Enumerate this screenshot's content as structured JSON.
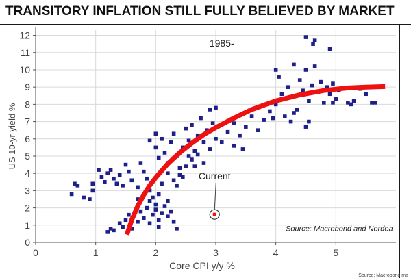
{
  "page": {
    "title": "TRANSITORY INFLATION STILL FULLY BELIEVED BY MARKET",
    "corner_note": "Source: Macrobond ma"
  },
  "colors": {
    "points": "#1f1f8a",
    "curve": "#ee1111",
    "current": "#ee1111",
    "grid": "#d9d9d9",
    "axis": "#555555"
  },
  "chart_data": {
    "type": "scatter",
    "title": "",
    "xlabel": "Core CPI y/y %",
    "ylabel": "US 10-yr yield %",
    "xlim": [
      0,
      6
    ],
    "ylim": [
      0,
      12.3
    ],
    "xticks": [
      0,
      1,
      2,
      3,
      4,
      5
    ],
    "yticks": [
      0,
      1,
      2,
      3,
      4,
      5,
      6,
      7,
      8,
      9,
      10,
      11,
      12
    ],
    "grid": true,
    "annotations": [
      {
        "text": "1985-",
        "x": 3.1,
        "y": 11.35
      },
      {
        "text": "Current",
        "x": 2.98,
        "y": 3.65
      },
      {
        "text": "Source: Macrobond and Nordea",
        "x": 5.95,
        "y": 0.65
      }
    ],
    "series": [
      {
        "type": "scatter",
        "points": [
          [
            0.6,
            2.8
          ],
          [
            0.65,
            3.4
          ],
          [
            0.7,
            3.3
          ],
          [
            0.8,
            2.6
          ],
          [
            0.9,
            2.5
          ],
          [
            0.95,
            3.0
          ],
          [
            0.95,
            3.4
          ],
          [
            1.05,
            4.2
          ],
          [
            1.1,
            3.8
          ],
          [
            1.15,
            3.5
          ],
          [
            1.2,
            4.0
          ],
          [
            1.25,
            4.2
          ],
          [
            1.3,
            3.7
          ],
          [
            1.35,
            3.4
          ],
          [
            1.4,
            3.9
          ],
          [
            1.45,
            3.3
          ],
          [
            1.5,
            4.5
          ],
          [
            1.55,
            4.1
          ],
          [
            1.6,
            3.6
          ],
          [
            1.7,
            3.2
          ],
          [
            1.75,
            4.6
          ],
          [
            1.8,
            4.1
          ],
          [
            1.85,
            3.7
          ],
          [
            1.9,
            3.0
          ],
          [
            1.95,
            2.6
          ],
          [
            2.0,
            2.2
          ],
          [
            2.05,
            2.8
          ],
          [
            2.1,
            3.4
          ],
          [
            1.2,
            0.6
          ],
          [
            1.25,
            0.8
          ],
          [
            1.3,
            0.7
          ],
          [
            1.4,
            1.1
          ],
          [
            1.45,
            0.9
          ],
          [
            1.5,
            1.3
          ],
          [
            1.55,
            1.6
          ],
          [
            1.6,
            0.8
          ],
          [
            1.7,
            1.2
          ],
          [
            1.75,
            1.8
          ],
          [
            1.8,
            1.4
          ],
          [
            1.85,
            2.0
          ],
          [
            1.9,
            1.1
          ],
          [
            1.95,
            1.6
          ],
          [
            2.0,
            1.9
          ],
          [
            2.05,
            1.3
          ],
          [
            2.1,
            1.7
          ],
          [
            2.15,
            2.1
          ],
          [
            2.2,
            1.5
          ],
          [
            2.25,
            1.8
          ],
          [
            2.3,
            1.2
          ],
          [
            2.35,
            0.8
          ],
          [
            2.05,
            0.9
          ],
          [
            2.2,
            2.4
          ],
          [
            1.9,
            2.4
          ],
          [
            1.8,
            2.8
          ],
          [
            1.7,
            2.5
          ],
          [
            1.9,
            5.9
          ],
          [
            2.0,
            5.5
          ],
          [
            2.0,
            6.3
          ],
          [
            2.05,
            4.9
          ],
          [
            2.1,
            6.0
          ],
          [
            2.15,
            5.2
          ],
          [
            2.2,
            4.6
          ],
          [
            2.25,
            5.8
          ],
          [
            2.3,
            6.3
          ],
          [
            2.35,
            5.0
          ],
          [
            2.4,
            4.3
          ],
          [
            2.45,
            5.5
          ],
          [
            2.5,
            6.6
          ],
          [
            2.55,
            5.9
          ],
          [
            2.6,
            6.8
          ],
          [
            2.65,
            5.3
          ],
          [
            2.7,
            6.2
          ],
          [
            2.75,
            7.2
          ],
          [
            2.8,
            5.8
          ],
          [
            2.85,
            6.5
          ],
          [
            2.9,
            7.7
          ],
          [
            2.95,
            6.9
          ],
          [
            3.0,
            7.8
          ],
          [
            2.2,
            4.0
          ],
          [
            2.3,
            3.6
          ],
          [
            2.4,
            3.9
          ],
          [
            2.5,
            4.4
          ],
          [
            2.6,
            4.8
          ],
          [
            2.7,
            5.1
          ],
          [
            2.8,
            4.6
          ],
          [
            2.9,
            5.4
          ],
          [
            3.0,
            6.0
          ],
          [
            3.1,
            5.8
          ],
          [
            3.2,
            6.4
          ],
          [
            3.3,
            6.9
          ],
          [
            3.4,
            6.2
          ],
          [
            3.5,
            6.7
          ],
          [
            3.6,
            7.3
          ],
          [
            3.7,
            6.5
          ],
          [
            3.8,
            7.1
          ],
          [
            3.9,
            7.6
          ],
          [
            3.3,
            5.6
          ],
          [
            3.45,
            5.4
          ],
          [
            2.55,
            5.0
          ],
          [
            2.65,
            4.4
          ],
          [
            2.35,
            3.3
          ],
          [
            2.45,
            3.8
          ],
          [
            3.95,
            7.2
          ],
          [
            4.0,
            8.0
          ],
          [
            4.0,
            10.0
          ],
          [
            4.05,
            9.6
          ],
          [
            4.1,
            8.6
          ],
          [
            4.15,
            7.3
          ],
          [
            4.2,
            9.0
          ],
          [
            4.25,
            8.4
          ],
          [
            4.3,
            10.3
          ],
          [
            4.35,
            7.7
          ],
          [
            4.4,
            9.4
          ],
          [
            4.45,
            8.8
          ],
          [
            4.5,
            10.0
          ],
          [
            4.55,
            8.2
          ],
          [
            4.6,
            9.1
          ],
          [
            4.65,
            10.2
          ],
          [
            4.7,
            8.7
          ],
          [
            4.75,
            9.3
          ],
          [
            4.8,
            8.1
          ],
          [
            4.85,
            9.0
          ],
          [
            4.9,
            8.6
          ],
          [
            4.95,
            9.2
          ],
          [
            5.0,
            8.3
          ],
          [
            5.05,
            8.8
          ],
          [
            4.25,
            7.0
          ],
          [
            4.3,
            7.5
          ],
          [
            4.55,
            7.0
          ],
          [
            4.5,
            6.7
          ],
          [
            4.62,
            11.5
          ],
          [
            4.65,
            11.7
          ],
          [
            4.9,
            11.2
          ],
          [
            4.5,
            11.9
          ],
          [
            5.2,
            8.1
          ],
          [
            5.25,
            8.0
          ],
          [
            5.3,
            8.2
          ],
          [
            5.4,
            8.9
          ],
          [
            5.5,
            8.6
          ],
          [
            5.6,
            8.1
          ],
          [
            5.65,
            8.1
          ],
          [
            4.95,
            8.1
          ]
        ]
      },
      {
        "type": "line",
        "name": "",
        "points": [
          [
            1.52,
            0.45
          ],
          [
            1.6,
            1.3
          ],
          [
            1.7,
            2.1
          ],
          [
            1.8,
            2.75
          ],
          [
            1.9,
            3.3
          ],
          [
            2.0,
            3.75
          ],
          [
            2.2,
            4.55
          ],
          [
            2.4,
            5.2
          ],
          [
            2.6,
            5.75
          ],
          [
            2.8,
            6.25
          ],
          [
            3.0,
            6.65
          ],
          [
            3.3,
            7.2
          ],
          [
            3.6,
            7.7
          ],
          [
            4.0,
            8.2
          ],
          [
            4.4,
            8.55
          ],
          [
            4.8,
            8.8
          ],
          [
            5.2,
            8.95
          ],
          [
            5.5,
            9.0
          ],
          [
            5.82,
            9.03
          ]
        ]
      }
    ],
    "current_point": [
      2.98,
      1.62
    ]
  }
}
